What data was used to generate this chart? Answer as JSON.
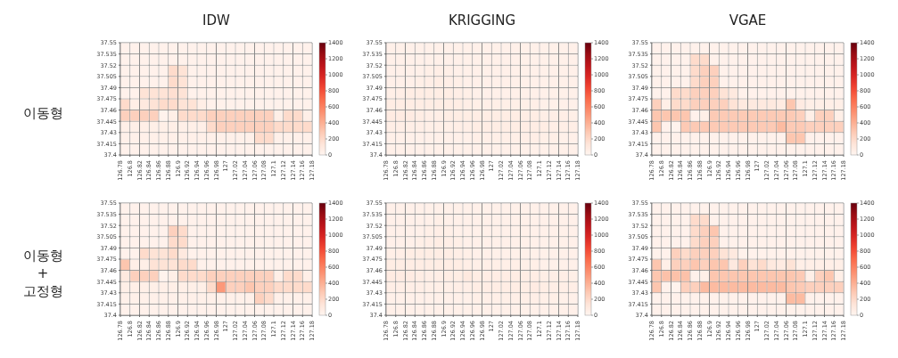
{
  "chart_data": [
    {
      "type": "heatmap",
      "title": "IDW",
      "ylabel": "이동형",
      "grid": true,
      "clim": [
        0,
        1400
      ],
      "cticks": [
        0,
        200,
        400,
        600,
        800,
        1000,
        1200,
        1400
      ],
      "xlim": [
        126.78,
        127.18
      ],
      "xticks": [
        126.78,
        126.8,
        126.82,
        126.84,
        126.86,
        126.88,
        126.9,
        126.92,
        126.94,
        126.96,
        126.98,
        127,
        127.02,
        127.04,
        127.06,
        127.08,
        127.1,
        127.12,
        127.14,
        127.16,
        127.18
      ],
      "ylim": [
        37.4,
        37.55
      ],
      "yticks": [
        37.4,
        37.415,
        37.43,
        37.445,
        37.46,
        37.475,
        37.49,
        37.505,
        37.52,
        37.535,
        37.55
      ],
      "cells": [
        [
          30,
          30,
          30,
          30,
          30,
          30,
          30,
          30,
          30,
          30,
          30,
          30,
          30,
          30,
          30,
          30,
          30,
          30,
          30,
          30
        ],
        [
          30,
          30,
          30,
          30,
          30,
          30,
          30,
          30,
          30,
          30,
          30,
          30,
          30,
          30,
          30,
          30,
          30,
          30,
          30,
          30
        ],
        [
          30,
          30,
          30,
          30,
          30,
          200,
          150,
          30,
          30,
          30,
          30,
          30,
          30,
          30,
          30,
          30,
          30,
          30,
          30,
          30
        ],
        [
          30,
          30,
          30,
          30,
          30,
          200,
          150,
          30,
          30,
          30,
          30,
          30,
          30,
          30,
          30,
          30,
          30,
          30,
          30,
          30
        ],
        [
          30,
          30,
          150,
          150,
          150,
          180,
          150,
          30,
          30,
          30,
          30,
          30,
          30,
          30,
          30,
          30,
          30,
          30,
          30,
          30
        ],
        [
          200,
          50,
          100,
          150,
          200,
          200,
          150,
          150,
          60,
          30,
          30,
          30,
          30,
          30,
          30,
          30,
          30,
          30,
          30,
          30
        ],
        [
          250,
          250,
          250,
          250,
          20,
          50,
          200,
          200,
          200,
          250,
          250,
          250,
          250,
          250,
          250,
          250,
          50,
          200,
          200,
          50
        ],
        [
          50,
          50,
          50,
          50,
          50,
          50,
          50,
          50,
          50,
          200,
          250,
          250,
          250,
          250,
          250,
          250,
          200,
          200,
          200,
          200
        ],
        [
          40,
          40,
          40,
          40,
          40,
          40,
          40,
          40,
          40,
          40,
          40,
          40,
          40,
          40,
          200,
          200,
          40,
          40,
          40,
          40
        ],
        [
          30,
          30,
          30,
          30,
          30,
          30,
          30,
          30,
          30,
          30,
          30,
          30,
          30,
          30,
          30,
          30,
          30,
          30,
          30,
          30
        ]
      ]
    },
    {
      "type": "heatmap",
      "title": "KRIGGING",
      "grid": true,
      "clim": [
        0,
        1400
      ],
      "cticks": [
        0,
        200,
        400,
        600,
        800,
        1000,
        1200,
        1400
      ],
      "xlim": [
        126.78,
        127.18
      ],
      "xticks": [
        126.78,
        126.8,
        126.82,
        126.84,
        126.86,
        126.88,
        126.9,
        126.92,
        126.94,
        126.96,
        126.98,
        127,
        127.02,
        127.04,
        127.06,
        127.08,
        127.1,
        127.12,
        127.14,
        127.16,
        127.18
      ],
      "ylim": [
        37.4,
        37.55
      ],
      "yticks": [
        37.4,
        37.415,
        37.43,
        37.445,
        37.46,
        37.475,
        37.49,
        37.505,
        37.52,
        37.535,
        37.55
      ],
      "cells": [
        [
          40,
          40,
          40,
          40,
          40,
          40,
          40,
          40,
          40,
          40,
          40,
          40,
          40,
          40,
          40,
          40,
          40,
          40,
          40,
          40
        ],
        [
          40,
          40,
          40,
          40,
          40,
          40,
          40,
          40,
          40,
          40,
          40,
          40,
          40,
          40,
          40,
          40,
          40,
          40,
          40,
          40
        ],
        [
          40,
          40,
          40,
          40,
          50,
          60,
          50,
          40,
          40,
          40,
          40,
          40,
          40,
          40,
          40,
          40,
          40,
          40,
          40,
          40
        ],
        [
          40,
          40,
          40,
          50,
          60,
          70,
          60,
          50,
          40,
          40,
          40,
          40,
          40,
          40,
          40,
          40,
          40,
          40,
          40,
          40
        ],
        [
          50,
          60,
          70,
          70,
          70,
          70,
          70,
          60,
          50,
          40,
          40,
          40,
          40,
          40,
          40,
          40,
          40,
          40,
          40,
          40
        ],
        [
          70,
          70,
          70,
          70,
          70,
          70,
          70,
          70,
          60,
          50,
          50,
          50,
          50,
          50,
          50,
          50,
          40,
          40,
          40,
          40
        ],
        [
          80,
          80,
          80,
          70,
          60,
          60,
          70,
          70,
          70,
          70,
          70,
          70,
          70,
          70,
          70,
          70,
          60,
          60,
          60,
          50
        ],
        [
          60,
          60,
          60,
          60,
          50,
          50,
          50,
          60,
          60,
          70,
          70,
          70,
          70,
          70,
          70,
          70,
          70,
          60,
          60,
          60
        ],
        [
          40,
          40,
          40,
          40,
          40,
          40,
          40,
          40,
          40,
          50,
          50,
          50,
          50,
          50,
          60,
          60,
          50,
          50,
          40,
          40
        ],
        [
          40,
          40,
          40,
          40,
          40,
          40,
          40,
          40,
          40,
          40,
          40,
          40,
          40,
          40,
          40,
          40,
          40,
          40,
          40,
          40
        ]
      ]
    },
    {
      "type": "heatmap",
      "title": "VGAE",
      "grid": true,
      "clim": [
        0,
        1400
      ],
      "cticks": [
        0,
        200,
        400,
        600,
        800,
        1000,
        1200,
        1400
      ],
      "xlim": [
        126.78,
        127.18
      ],
      "xticks": [
        126.78,
        126.8,
        126.82,
        126.84,
        126.86,
        126.88,
        126.9,
        126.92,
        126.94,
        126.96,
        126.98,
        127,
        127.02,
        127.04,
        127.06,
        127.08,
        127.1,
        127.12,
        127.14,
        127.16,
        127.18
      ],
      "ylim": [
        37.4,
        37.55
      ],
      "yticks": [
        37.4,
        37.415,
        37.43,
        37.445,
        37.46,
        37.475,
        37.49,
        37.505,
        37.52,
        37.535,
        37.55
      ],
      "cells": [
        [
          30,
          30,
          30,
          30,
          30,
          30,
          30,
          30,
          30,
          30,
          30,
          30,
          30,
          30,
          30,
          30,
          30,
          30,
          30,
          30
        ],
        [
          30,
          30,
          30,
          30,
          200,
          200,
          30,
          30,
          30,
          30,
          30,
          30,
          30,
          30,
          30,
          30,
          30,
          30,
          30,
          30
        ],
        [
          30,
          30,
          30,
          30,
          200,
          250,
          250,
          30,
          30,
          30,
          30,
          30,
          30,
          30,
          30,
          30,
          30,
          30,
          30,
          30
        ],
        [
          30,
          30,
          30,
          30,
          200,
          250,
          250,
          30,
          30,
          30,
          30,
          30,
          30,
          30,
          30,
          30,
          30,
          30,
          30,
          30
        ],
        [
          30,
          30,
          200,
          200,
          250,
          250,
          250,
          150,
          100,
          30,
          30,
          30,
          30,
          30,
          30,
          30,
          30,
          30,
          30,
          30
        ],
        [
          250,
          50,
          200,
          200,
          250,
          250,
          250,
          250,
          150,
          100,
          100,
          100,
          100,
          80,
          300,
          80,
          50,
          50,
          50,
          50
        ],
        [
          300,
          300,
          300,
          300,
          30,
          50,
          280,
          280,
          280,
          280,
          280,
          280,
          280,
          280,
          280,
          250,
          50,
          250,
          250,
          50
        ],
        [
          300,
          30,
          20,
          280,
          280,
          280,
          280,
          280,
          280,
          280,
          280,
          280,
          280,
          350,
          280,
          280,
          250,
          250,
          250,
          250
        ],
        [
          30,
          30,
          30,
          30,
          30,
          30,
          30,
          30,
          30,
          30,
          30,
          30,
          30,
          30,
          300,
          300,
          30,
          30,
          30,
          30
        ],
        [
          30,
          30,
          30,
          30,
          30,
          30,
          30,
          30,
          30,
          30,
          30,
          30,
          30,
          30,
          30,
          30,
          30,
          30,
          30,
          30
        ]
      ]
    },
    {
      "type": "heatmap",
      "ylabel": "이동형 + 고정형",
      "grid": true,
      "clim": [
        0,
        1400
      ],
      "cticks": [
        0,
        200,
        400,
        600,
        800,
        1000,
        1200,
        1400
      ],
      "xlim": [
        126.78,
        127.18
      ],
      "xticks": [
        126.78,
        126.8,
        126.82,
        126.84,
        126.86,
        126.88,
        126.9,
        126.92,
        126.94,
        126.96,
        126.98,
        127,
        127.02,
        127.04,
        127.06,
        127.08,
        127.1,
        127.12,
        127.14,
        127.16,
        127.18
      ],
      "ylim": [
        37.4,
        37.55
      ],
      "yticks": [
        37.4,
        37.415,
        37.43,
        37.445,
        37.46,
        37.475,
        37.49,
        37.505,
        37.52,
        37.535,
        37.55
      ],
      "cells": [
        [
          30,
          30,
          30,
          30,
          30,
          30,
          30,
          30,
          30,
          30,
          30,
          30,
          30,
          30,
          30,
          30,
          30,
          30,
          30,
          30
        ],
        [
          30,
          30,
          30,
          30,
          30,
          30,
          30,
          30,
          30,
          30,
          30,
          30,
          30,
          30,
          30,
          30,
          30,
          30,
          30,
          30
        ],
        [
          30,
          30,
          30,
          30,
          30,
          250,
          200,
          30,
          30,
          30,
          30,
          30,
          30,
          30,
          30,
          30,
          30,
          30,
          30,
          30
        ],
        [
          30,
          30,
          30,
          30,
          30,
          200,
          200,
          30,
          30,
          30,
          30,
          30,
          30,
          30,
          30,
          30,
          30,
          30,
          30,
          30
        ],
        [
          30,
          30,
          200,
          150,
          150,
          200,
          100,
          30,
          30,
          30,
          30,
          30,
          30,
          30,
          30,
          30,
          30,
          30,
          30,
          30
        ],
        [
          300,
          50,
          50,
          150,
          150,
          150,
          200,
          200,
          30,
          30,
          30,
          30,
          30,
          30,
          30,
          30,
          30,
          30,
          30,
          30
        ],
        [
          100,
          250,
          250,
          250,
          20,
          50,
          200,
          200,
          200,
          250,
          250,
          250,
          250,
          250,
          250,
          250,
          50,
          200,
          200,
          50
        ],
        [
          50,
          50,
          50,
          50,
          50,
          50,
          50,
          50,
          50,
          200,
          500,
          250,
          250,
          300,
          250,
          250,
          200,
          200,
          200,
          200
        ],
        [
          40,
          40,
          40,
          40,
          40,
          40,
          40,
          40,
          40,
          40,
          40,
          40,
          40,
          40,
          250,
          200,
          40,
          40,
          40,
          40
        ],
        [
          30,
          30,
          30,
          30,
          30,
          30,
          30,
          30,
          30,
          30,
          30,
          30,
          30,
          30,
          30,
          30,
          30,
          30,
          30,
          30
        ]
      ]
    },
    {
      "type": "heatmap",
      "grid": true,
      "clim": [
        0,
        1400
      ],
      "cticks": [
        0,
        200,
        400,
        600,
        800,
        1000,
        1200,
        1400
      ],
      "xlim": [
        126.78,
        127.18
      ],
      "xticks": [
        126.78,
        126.8,
        126.82,
        126.84,
        126.86,
        126.88,
        126.9,
        126.92,
        126.94,
        126.96,
        126.98,
        127,
        127.02,
        127.04,
        127.06,
        127.08,
        127.1,
        127.12,
        127.14,
        127.16,
        127.18
      ],
      "ylim": [
        37.4,
        37.55
      ],
      "yticks": [
        37.4,
        37.415,
        37.43,
        37.445,
        37.46,
        37.475,
        37.49,
        37.505,
        37.52,
        37.535,
        37.55
      ],
      "cells": [
        [
          40,
          40,
          40,
          40,
          40,
          40,
          40,
          40,
          40,
          40,
          40,
          40,
          40,
          40,
          40,
          40,
          40,
          40,
          40,
          40
        ],
        [
          40,
          40,
          40,
          40,
          40,
          50,
          40,
          40,
          40,
          40,
          40,
          40,
          40,
          40,
          40,
          40,
          40,
          40,
          40,
          40
        ],
        [
          40,
          40,
          40,
          40,
          50,
          60,
          50,
          40,
          40,
          40,
          40,
          40,
          40,
          40,
          40,
          40,
          40,
          40,
          40,
          40
        ],
        [
          40,
          40,
          40,
          50,
          60,
          70,
          60,
          50,
          40,
          40,
          40,
          40,
          40,
          40,
          40,
          40,
          40,
          40,
          40,
          40
        ],
        [
          50,
          60,
          70,
          70,
          70,
          70,
          70,
          60,
          50,
          40,
          40,
          40,
          40,
          40,
          40,
          40,
          40,
          40,
          40,
          40
        ],
        [
          70,
          70,
          70,
          70,
          70,
          70,
          70,
          70,
          60,
          50,
          50,
          50,
          50,
          50,
          50,
          50,
          40,
          40,
          40,
          40
        ],
        [
          80,
          80,
          80,
          70,
          60,
          60,
          70,
          70,
          100,
          70,
          70,
          70,
          70,
          70,
          70,
          70,
          60,
          60,
          60,
          50
        ],
        [
          60,
          60,
          60,
          60,
          50,
          50,
          50,
          60,
          60,
          70,
          70,
          70,
          70,
          70,
          70,
          80,
          70,
          60,
          60,
          60
        ],
        [
          40,
          40,
          40,
          40,
          40,
          40,
          40,
          40,
          40,
          50,
          50,
          50,
          50,
          50,
          60,
          60,
          50,
          50,
          40,
          40
        ],
        [
          40,
          40,
          40,
          40,
          40,
          40,
          40,
          40,
          40,
          40,
          40,
          40,
          40,
          40,
          40,
          40,
          40,
          40,
          40,
          40
        ]
      ]
    },
    {
      "type": "heatmap",
      "grid": true,
      "clim": [
        0,
        1400
      ],
      "cticks": [
        0,
        200,
        400,
        600,
        800,
        1000,
        1200,
        1400
      ],
      "xlim": [
        126.78,
        127.18
      ],
      "xticks": [
        126.78,
        126.8,
        126.82,
        126.84,
        126.86,
        126.88,
        126.9,
        126.92,
        126.94,
        126.96,
        126.98,
        127,
        127.02,
        127.04,
        127.06,
        127.08,
        127.1,
        127.12,
        127.14,
        127.16,
        127.18
      ],
      "ylim": [
        37.4,
        37.55
      ],
      "yticks": [
        37.4,
        37.415,
        37.43,
        37.445,
        37.46,
        37.475,
        37.49,
        37.505,
        37.52,
        37.535,
        37.55
      ],
      "cells": [
        [
          30,
          30,
          30,
          30,
          30,
          30,
          30,
          30,
          30,
          30,
          30,
          30,
          30,
          30,
          30,
          30,
          30,
          30,
          30,
          30
        ],
        [
          30,
          30,
          30,
          30,
          200,
          200,
          30,
          30,
          30,
          30,
          30,
          30,
          30,
          30,
          30,
          30,
          30,
          30,
          30,
          30
        ],
        [
          30,
          30,
          30,
          30,
          200,
          250,
          300,
          30,
          30,
          30,
          30,
          30,
          30,
          30,
          30,
          30,
          30,
          30,
          30,
          30
        ],
        [
          30,
          30,
          30,
          30,
          200,
          250,
          250,
          30,
          30,
          30,
          30,
          30,
          30,
          30,
          30,
          30,
          30,
          30,
          30,
          30
        ],
        [
          30,
          30,
          250,
          200,
          250,
          250,
          250,
          150,
          100,
          30,
          30,
          30,
          30,
          30,
          30,
          30,
          30,
          30,
          30,
          30
        ],
        [
          300,
          50,
          250,
          250,
          300,
          250,
          300,
          300,
          100,
          250,
          150,
          200,
          100,
          80,
          150,
          50,
          50,
          50,
          50,
          50
        ],
        [
          300,
          320,
          320,
          320,
          30,
          50,
          300,
          300,
          300,
          300,
          300,
          300,
          300,
          300,
          300,
          280,
          50,
          250,
          300,
          50
        ],
        [
          300,
          30,
          20,
          250,
          250,
          350,
          350,
          350,
          350,
          350,
          350,
          350,
          350,
          350,
          300,
          280,
          250,
          250,
          250,
          250
        ],
        [
          30,
          30,
          30,
          30,
          30,
          30,
          30,
          30,
          30,
          30,
          30,
          30,
          30,
          30,
          350,
          350,
          30,
          30,
          30,
          30
        ],
        [
          30,
          30,
          30,
          30,
          30,
          30,
          30,
          30,
          30,
          30,
          30,
          30,
          30,
          30,
          30,
          30,
          30,
          30,
          30,
          30
        ]
      ]
    }
  ]
}
